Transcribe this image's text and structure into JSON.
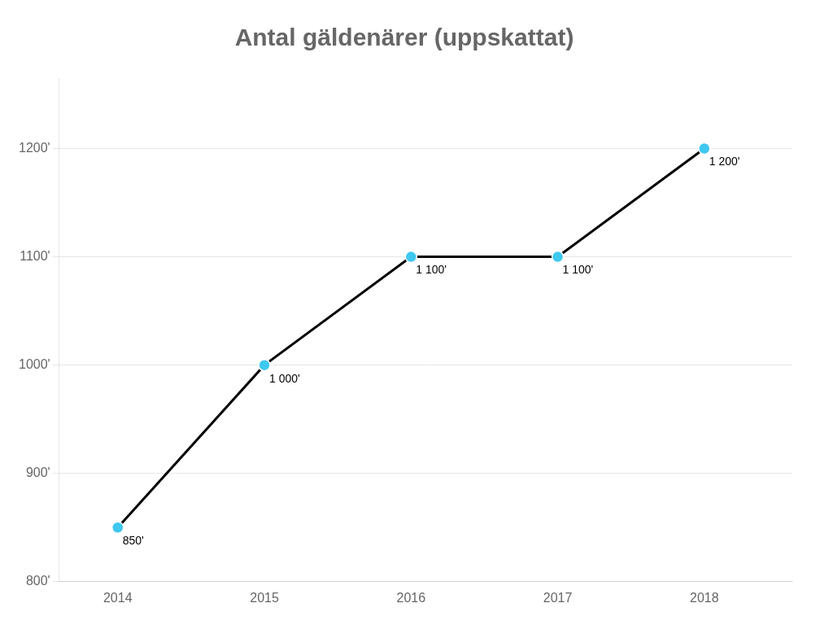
{
  "chart_data": {
    "type": "line",
    "title": "Antal gäldenärer (uppskattat)",
    "x": [
      2014,
      2015,
      2016,
      2017,
      2018
    ],
    "values": [
      850,
      1000,
      1100,
      1100,
      1200
    ],
    "value_labels": [
      "850'",
      "1 000'",
      "1 100'",
      "1 100'",
      "1 200'"
    ],
    "data_labels": true,
    "color": "#000000",
    "colors": [
      "#3EC8F0",
      "#3EC8F0",
      "#3EC8F0",
      "#3EC8F0",
      "#3EC8F0"
    ],
    "marker": "circle",
    "xlim": [
      2013.6,
      2018.6
    ],
    "xticks": [
      2014,
      2015,
      2016,
      2017,
      2018
    ],
    "ylim": [
      800,
      1265
    ],
    "yticks": [
      {
        "value": 800,
        "label": "800'"
      },
      {
        "value": 900,
        "label": "900'"
      },
      {
        "value": 1000,
        "label": "1000'"
      },
      {
        "value": 1100,
        "label": "1100'"
      },
      {
        "value": 1200,
        "label": "1200'"
      }
    ],
    "grid": "y"
  }
}
